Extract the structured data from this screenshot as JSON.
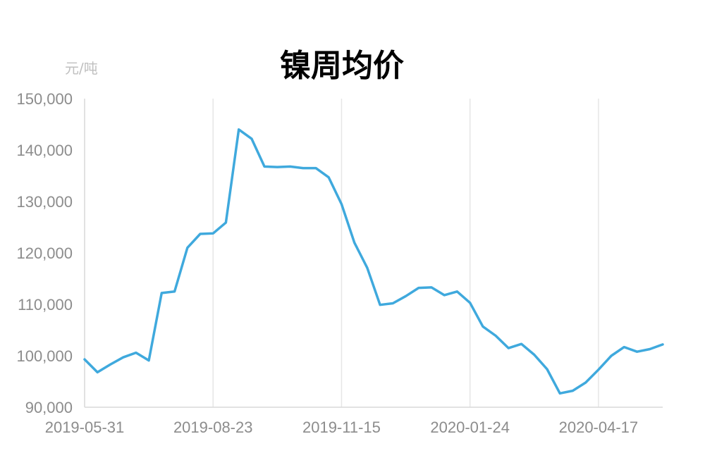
{
  "chart_data": {
    "type": "line",
    "title": "镍周均价",
    "ylabel": "元/吨",
    "xlabel": "",
    "ylim": [
      90000,
      150000
    ],
    "yticks": [
      90000,
      100000,
      110000,
      120000,
      130000,
      140000,
      150000
    ],
    "ytick_labels": [
      "90,000",
      "100,000",
      "110,000",
      "120,000",
      "130,000",
      "140,000",
      "150,000"
    ],
    "x_tick_labels": [
      "2019-05-31",
      "2019-08-23",
      "2019-11-15",
      "2020-01-24",
      "2020-04-17"
    ],
    "x_tick_index": [
      0,
      10,
      20,
      30,
      40
    ],
    "grid": "vertical",
    "legend": "none",
    "color": "#3fa9dd",
    "series": [
      {
        "values": [
          99300,
          96800,
          98300,
          99700,
          100600,
          99100,
          112200,
          112500,
          121000,
          123700,
          123800,
          125900,
          144000,
          142200,
          136800,
          136700,
          136800,
          136500,
          136500,
          134700,
          129500,
          122000,
          117100,
          109900,
          110200,
          111600,
          113200,
          113300,
          111800,
          112500,
          110300,
          105700,
          103900,
          101500,
          102300,
          100200,
          97400,
          92700,
          93200,
          94800,
          97300,
          100000,
          101700,
          100800,
          101300,
          102200
        ]
      }
    ]
  }
}
